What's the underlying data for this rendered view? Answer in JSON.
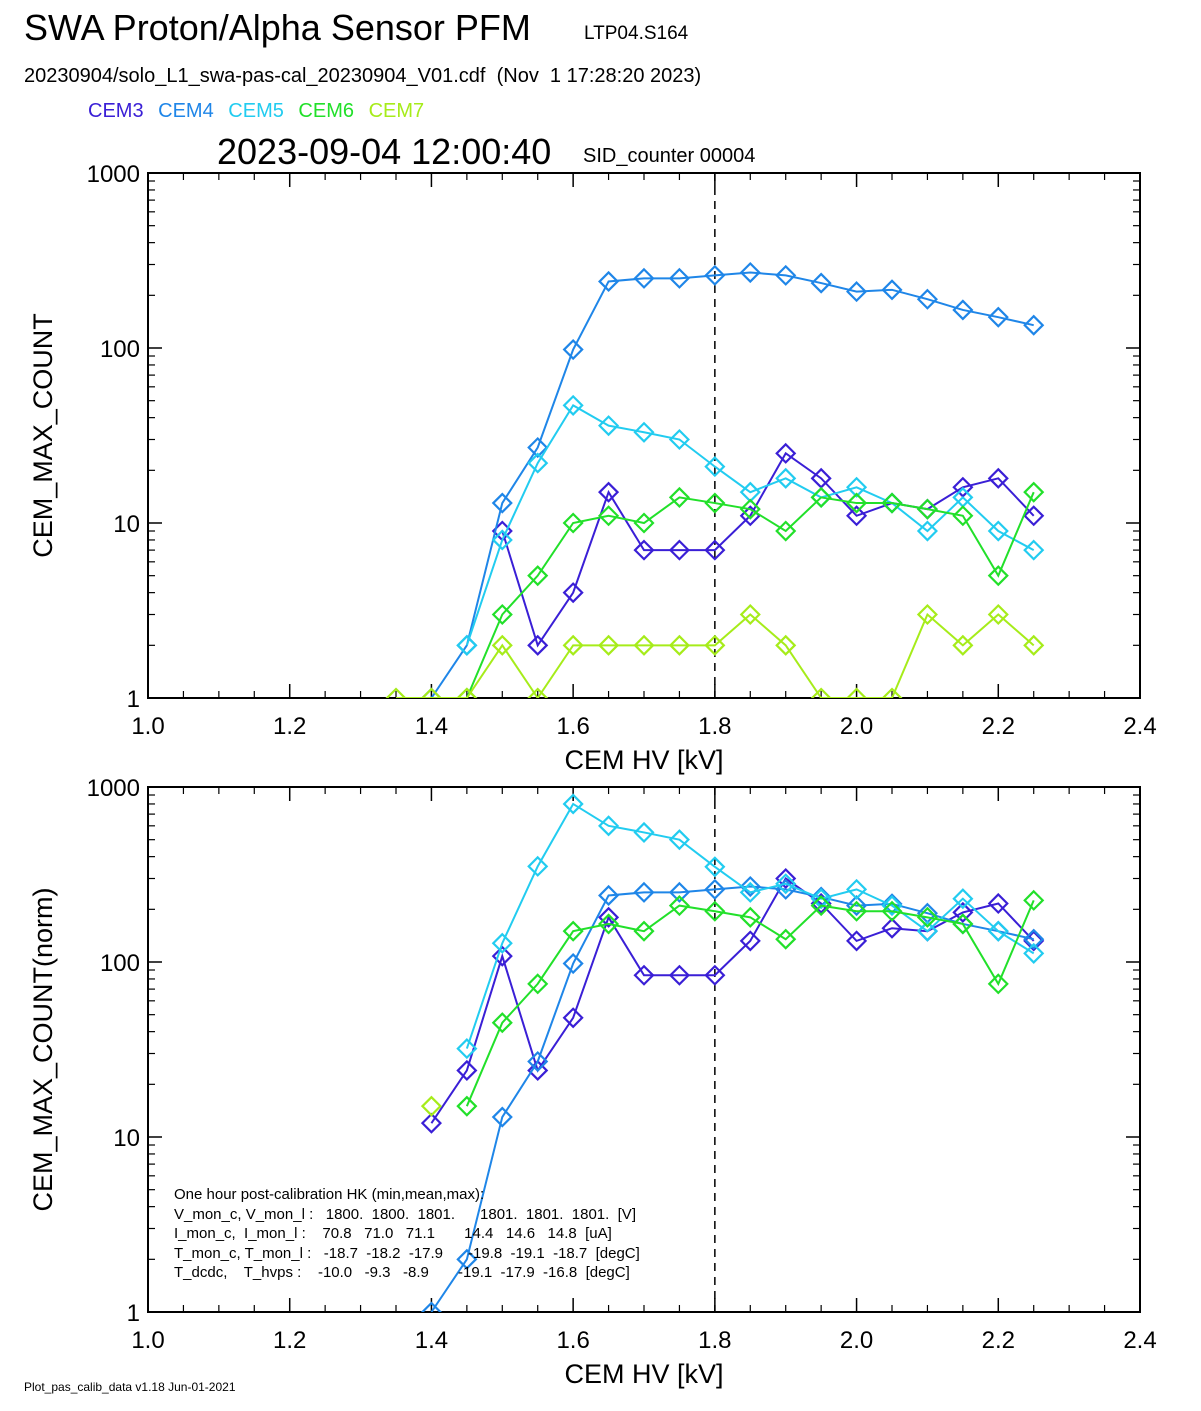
{
  "header": {
    "title": "SWA Proton/Alpha Sensor PFM",
    "title_code": "LTP04.S164",
    "file_line": "20230904/solo_L1_swa-pas-cal_20230904_V01.cdf  (Nov  1 17:28:20 2023)",
    "timestamp": "2023-09-04 12:00:40",
    "sid_label": "SID_counter 00004"
  },
  "legend": [
    {
      "label": "CEM3",
      "color": "#3a1fd6"
    },
    {
      "label": "CEM4",
      "color": "#1f86e8"
    },
    {
      "label": "CEM5",
      "color": "#22ccf0"
    },
    {
      "label": "CEM6",
      "color": "#22e02a"
    },
    {
      "label": "CEM7",
      "color": "#a6ec1a"
    }
  ],
  "hk": {
    "heading": "One hour post-calibration HK (min,mean,max):",
    "rows": [
      "V_mon_c, V_mon_l :   1800.  1800.  1801.      1801.  1801.  1801.  [V]",
      "I_mon_c,  I_mon_l :    70.8   71.0   71.1       14.4   14.6   14.8  [uA]",
      "T_mon_c, T_mon_l :   -18.7  -18.2  -17.9      -19.8  -19.1  -18.7  [degC]",
      "T_dcdc,    T_hvps :    -10.0   -9.3   -8.9       -19.1  -17.9  -16.8  [degC]"
    ]
  },
  "footer": "Plot_pas_calib_data v1.18 Jun-01-2021",
  "chart_data": [
    {
      "type": "line",
      "xlabel": "CEM HV [kV]",
      "ylabel": "CEM_MAX_COUNT",
      "xlim": [
        1.0,
        2.4
      ],
      "ylim": [
        1,
        1000
      ],
      "yscale": "log",
      "xticks": [
        "1.0",
        "1.2",
        "1.4",
        "1.6",
        "1.8",
        "2.0",
        "2.2",
        "2.4"
      ],
      "yticks": [
        "1",
        "10",
        "100",
        "1000"
      ],
      "vline": 1.8,
      "x": [
        1.35,
        1.4,
        1.45,
        1.5,
        1.55,
        1.6,
        1.65,
        1.7,
        1.75,
        1.8,
        1.85,
        1.9,
        1.95,
        2.0,
        2.05,
        2.1,
        2.15,
        2.2,
        2.25
      ],
      "series": [
        {
          "name": "CEM3",
          "color": "#3a1fd6",
          "values": [
            0,
            0,
            0,
            9,
            2,
            4,
            15,
            7,
            7,
            7,
            11,
            25,
            18,
            11,
            13,
            12,
            16,
            18,
            11
          ]
        },
        {
          "name": "CEM4",
          "color": "#1f86e8",
          "values": [
            0,
            1,
            2,
            13,
            27,
            98,
            240,
            250,
            250,
            260,
            270,
            260,
            235,
            210,
            215,
            190,
            165,
            150,
            135
          ]
        },
        {
          "name": "CEM5",
          "color": "#22ccf0",
          "values": [
            0,
            0,
            2,
            8,
            22,
            47,
            36,
            33,
            30,
            21,
            15,
            18,
            14,
            16,
            13,
            9,
            14,
            9,
            7
          ]
        },
        {
          "name": "CEM6",
          "color": "#22e02a",
          "values": [
            0,
            0,
            1,
            3,
            5,
            10,
            11,
            10,
            14,
            13,
            12,
            9,
            14,
            13,
            13,
            12,
            11,
            5,
            15
          ]
        },
        {
          "name": "CEM7",
          "color": "#a6ec1a",
          "values": [
            1,
            1,
            1,
            2,
            1,
            2,
            2,
            2,
            2,
            2,
            3,
            2,
            1,
            1,
            1,
            3,
            2,
            3,
            2
          ]
        }
      ]
    },
    {
      "type": "line",
      "xlabel": "CEM HV [kV]",
      "ylabel": "CEM_MAX_COUNT(norm)",
      "xlim": [
        1.0,
        2.4
      ],
      "ylim": [
        1,
        1000
      ],
      "yscale": "log",
      "xticks": [
        "1.0",
        "1.2",
        "1.4",
        "1.6",
        "1.8",
        "2.0",
        "2.2",
        "2.4"
      ],
      "yticks": [
        "1",
        "10",
        "100",
        "1000"
      ],
      "vline": 1.8,
      "x": [
        1.35,
        1.4,
        1.45,
        1.5,
        1.55,
        1.6,
        1.65,
        1.7,
        1.75,
        1.8,
        1.85,
        1.9,
        1.95,
        2.0,
        2.05,
        2.1,
        2.15,
        2.2,
        2.25
      ],
      "series": [
        {
          "name": "CEM3",
          "color": "#3a1fd6",
          "values": [
            null,
            12,
            24,
            108,
            24,
            48,
            180,
            84,
            84,
            84,
            132,
            300,
            216,
            132,
            156,
            150,
            192,
            216,
            132
          ]
        },
        {
          "name": "CEM4",
          "color": "#1f86e8",
          "values": [
            null,
            1,
            2,
            13,
            27,
            98,
            240,
            250,
            250,
            260,
            270,
            260,
            235,
            210,
            215,
            190,
            165,
            150,
            135
          ]
        },
        {
          "name": "CEM5",
          "color": "#22ccf0",
          "values": [
            null,
            null,
            32,
            128,
            352,
            800,
            600,
            550,
            500,
            350,
            250,
            280,
            230,
            260,
            210,
            150,
            230,
            150,
            112
          ]
        },
        {
          "name": "CEM6",
          "color": "#22e02a",
          "values": [
            null,
            null,
            15,
            45,
            75,
            150,
            165,
            150,
            210,
            195,
            180,
            135,
            210,
            195,
            195,
            180,
            165,
            75,
            225
          ]
        },
        {
          "name": "CEM7",
          "color": "#a6ec1a",
          "values": [
            null,
            15,
            null,
            null,
            null,
            null,
            null,
            null,
            null,
            null,
            null,
            null,
            null,
            null,
            null,
            null,
            null,
            null,
            null
          ]
        }
      ]
    }
  ]
}
